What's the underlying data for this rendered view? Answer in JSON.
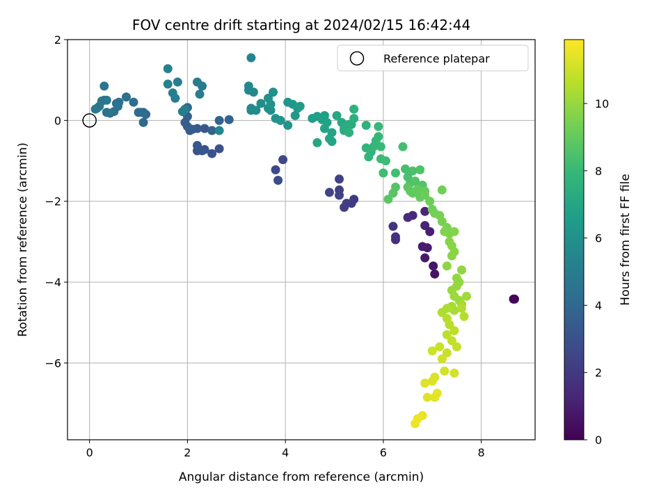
{
  "chart_data": {
    "type": "scatter",
    "title": "FOV centre drift starting at 2024/02/15 16:42:44",
    "xlabel": "Angular distance from reference (arcmin)",
    "ylabel": "Rotation from reference (arcmin)",
    "xlim": [
      -0.45,
      9.1
    ],
    "ylim": [
      -7.9,
      2.0
    ],
    "xticks": [
      0,
      2,
      4,
      6,
      8
    ],
    "yticks": [
      2,
      0,
      -2,
      -4,
      -6
    ],
    "xtick_labels": [
      "0",
      "2",
      "4",
      "6",
      "8"
    ],
    "ytick_labels": [
      "2",
      "0",
      "−2",
      "−4",
      "−6"
    ],
    "grid": true,
    "legend": {
      "position": "top-right",
      "entries": [
        "Reference platepar"
      ]
    },
    "reference_point": {
      "x": 0,
      "y": 0,
      "label": "Reference platepar"
    },
    "colorbar": {
      "label": "Hours from first FF file",
      "colormap": "viridis",
      "range": [
        0,
        11.9
      ],
      "ticks": [
        0,
        2,
        4,
        6,
        8,
        10
      ],
      "tick_labels": [
        "0",
        "2",
        "4",
        "6",
        "8",
        "10"
      ],
      "stops": [
        "#440154",
        "#482878",
        "#3e4989",
        "#31688e",
        "#26828e",
        "#1f9e89",
        "#35b779",
        "#6ece58",
        "#b5de2b",
        "#fde725"
      ]
    },
    "points": [
      [
        8.68,
        -4.42,
        0.05
      ],
      [
        8.66,
        -4.42,
        0.1
      ],
      [
        7.05,
        -3.8,
        0.6
      ],
      [
        7.02,
        -3.6,
        0.7
      ],
      [
        6.85,
        -3.4,
        0.8
      ],
      [
        6.9,
        -3.15,
        0.9
      ],
      [
        6.8,
        -3.12,
        1.0
      ],
      [
        6.95,
        -2.75,
        1.1
      ],
      [
        6.85,
        -2.6,
        1.2
      ],
      [
        6.85,
        -2.25,
        1.3
      ],
      [
        6.6,
        -2.35,
        1.4
      ],
      [
        6.5,
        -2.4,
        1.5
      ],
      [
        6.25,
        -2.95,
        1.6
      ],
      [
        6.25,
        -2.88,
        1.7
      ],
      [
        6.2,
        -2.62,
        1.8
      ],
      [
        5.4,
        -1.95,
        2.0
      ],
      [
        5.35,
        -2.05,
        2.1
      ],
      [
        5.25,
        -2.05,
        2.15
      ],
      [
        5.2,
        -2.15,
        2.2
      ],
      [
        5.1,
        -1.72,
        2.3
      ],
      [
        5.1,
        -1.45,
        2.35
      ],
      [
        5.1,
        -1.85,
        2.4
      ],
      [
        4.9,
        -1.78,
        2.5
      ],
      [
        3.95,
        -0.97,
        2.6
      ],
      [
        3.8,
        -1.22,
        2.7
      ],
      [
        3.85,
        -1.48,
        2.8
      ],
      [
        2.65,
        -0.7,
        3.0
      ],
      [
        2.5,
        -0.82,
        3.05
      ],
      [
        2.35,
        -0.72,
        3.1
      ],
      [
        2.3,
        -0.75,
        3.15
      ],
      [
        2.2,
        -0.75,
        3.2
      ],
      [
        2.2,
        -0.62,
        3.25
      ],
      [
        2.35,
        -0.2,
        3.3
      ],
      [
        2.2,
        -0.2,
        3.35
      ],
      [
        2.1,
        -0.22,
        3.4
      ],
      [
        2.05,
        -0.25,
        3.45
      ],
      [
        2.0,
        -0.15,
        3.5
      ],
      [
        1.95,
        -0.05,
        3.55
      ],
      [
        2.0,
        0.1,
        3.6
      ],
      [
        2.5,
        -0.25,
        3.7
      ],
      [
        2.65,
        0.0,
        3.75
      ],
      [
        2.85,
        0.02,
        3.8
      ],
      [
        1.95,
        0.25,
        3.85
      ],
      [
        2.0,
        0.32,
        3.9
      ],
      [
        1.1,
        -0.05,
        4.0
      ],
      [
        1.15,
        0.15,
        4.05
      ],
      [
        1.1,
        0.2,
        4.1
      ],
      [
        1.05,
        0.2,
        4.15
      ],
      [
        1.0,
        0.2,
        4.2
      ],
      [
        0.9,
        0.45,
        4.25
      ],
      [
        0.75,
        0.58,
        4.3
      ],
      [
        0.6,
        0.45,
        4.35
      ],
      [
        0.55,
        0.42,
        4.4
      ],
      [
        0.58,
        0.35,
        4.45
      ],
      [
        0.5,
        0.22,
        4.5
      ],
      [
        0.42,
        0.18,
        4.55
      ],
      [
        0.35,
        0.2,
        4.6
      ],
      [
        0.3,
        0.85,
        4.62
      ],
      [
        0.3,
        0.5,
        4.65
      ],
      [
        0.25,
        0.48,
        4.7
      ],
      [
        0.2,
        0.35,
        4.75
      ],
      [
        0.15,
        0.3,
        4.8
      ],
      [
        0.12,
        0.28,
        4.82
      ],
      [
        0.35,
        0.5,
        4.85
      ],
      [
        2.3,
        0.85,
        4.9
      ],
      [
        2.2,
        0.95,
        4.92
      ],
      [
        2.25,
        0.65,
        4.95
      ],
      [
        1.95,
        0.28,
        5.0
      ],
      [
        1.9,
        0.22,
        5.05
      ],
      [
        1.75,
        0.55,
        5.1
      ],
      [
        1.7,
        0.68,
        5.15
      ],
      [
        1.8,
        0.95,
        5.2
      ],
      [
        1.6,
        0.9,
        5.25
      ],
      [
        1.6,
        1.28,
        5.3
      ],
      [
        2.65,
        -0.25,
        5.4
      ],
      [
        3.3,
        1.55,
        5.5
      ],
      [
        3.25,
        0.85,
        5.55
      ],
      [
        3.25,
        0.75,
        5.6
      ],
      [
        3.35,
        0.7,
        5.62
      ],
      [
        3.3,
        0.3,
        5.65
      ],
      [
        3.3,
        0.25,
        5.7
      ],
      [
        3.4,
        0.25,
        5.75
      ],
      [
        3.5,
        0.42,
        5.8
      ],
      [
        3.65,
        0.3,
        5.85
      ],
      [
        3.7,
        0.25,
        5.9
      ],
      [
        3.65,
        0.55,
        5.95
      ],
      [
        3.75,
        0.7,
        6.0
      ],
      [
        3.7,
        0.4,
        6.05
      ],
      [
        3.8,
        0.05,
        6.1
      ],
      [
        3.9,
        0.0,
        6.15
      ],
      [
        4.05,
        -0.12,
        6.2
      ],
      [
        4.05,
        0.45,
        6.25
      ],
      [
        4.15,
        0.4,
        6.3
      ],
      [
        4.2,
        0.12,
        6.35
      ],
      [
        4.25,
        0.3,
        6.4
      ],
      [
        4.3,
        0.35,
        6.45
      ],
      [
        4.55,
        0.05,
        6.6
      ],
      [
        4.65,
        0.1,
        6.65
      ],
      [
        4.8,
        0.12,
        6.7
      ],
      [
        4.75,
        0.02,
        6.75
      ],
      [
        4.85,
        -0.05,
        6.8
      ],
      [
        4.8,
        -0.2,
        6.85
      ],
      [
        4.95,
        -0.3,
        6.9
      ],
      [
        4.9,
        -0.45,
        6.95
      ],
      [
        4.95,
        -0.52,
        7.0
      ],
      [
        4.65,
        -0.55,
        7.05
      ],
      [
        5.05,
        0.12,
        7.1
      ],
      [
        5.15,
        -0.05,
        7.15
      ],
      [
        5.2,
        -0.25,
        7.2
      ],
      [
        5.2,
        -0.2,
        7.25
      ],
      [
        5.25,
        -0.15,
        7.3
      ],
      [
        5.3,
        -0.1,
        7.35
      ],
      [
        5.35,
        -0.1,
        7.4
      ],
      [
        5.4,
        0.05,
        7.45
      ],
      [
        5.3,
        -0.3,
        7.5
      ],
      [
        5.4,
        0.28,
        7.55
      ],
      [
        5.65,
        -0.12,
        7.6
      ],
      [
        5.65,
        -0.68,
        7.7
      ],
      [
        5.75,
        -0.78,
        7.75
      ],
      [
        5.7,
        -0.9,
        7.8
      ],
      [
        5.8,
        -0.65,
        7.85
      ],
      [
        5.85,
        -0.5,
        7.9
      ],
      [
        5.9,
        -0.4,
        7.95
      ],
      [
        5.9,
        -0.15,
        8.0
      ],
      [
        5.95,
        -0.65,
        8.05
      ],
      [
        5.95,
        -0.95,
        8.1
      ],
      [
        6.05,
        -1.0,
        8.15
      ],
      [
        6.0,
        -1.3,
        8.2
      ],
      [
        6.25,
        -1.3,
        8.25
      ],
      [
        6.4,
        -0.65,
        8.3
      ],
      [
        6.45,
        -1.2,
        8.35
      ],
      [
        6.5,
        -1.4,
        8.4
      ],
      [
        6.6,
        -1.25,
        8.45
      ],
      [
        6.55,
        -1.55,
        8.5
      ],
      [
        6.75,
        -1.22,
        8.55
      ],
      [
        6.65,
        -1.5,
        8.6
      ],
      [
        6.8,
        -1.6,
        8.65
      ],
      [
        6.25,
        -1.65,
        8.7
      ],
      [
        6.2,
        -1.8,
        8.75
      ],
      [
        6.1,
        -1.95,
        8.8
      ],
      [
        6.5,
        -1.65,
        8.85
      ],
      [
        6.55,
        -1.75,
        8.9
      ],
      [
        6.6,
        -1.8,
        8.95
      ],
      [
        6.7,
        -1.7,
        9.0
      ],
      [
        6.75,
        -1.9,
        9.05
      ],
      [
        6.85,
        -1.75,
        9.1
      ],
      [
        6.85,
        -1.85,
        9.15
      ],
      [
        6.95,
        -2.0,
        9.2
      ],
      [
        7.0,
        -2.2,
        9.25
      ],
      [
        7.2,
        -1.72,
        9.3
      ],
      [
        7.05,
        -2.3,
        9.35
      ],
      [
        7.15,
        -2.35,
        9.4
      ],
      [
        7.2,
        -2.5,
        9.45
      ],
      [
        7.3,
        -2.65,
        9.5
      ],
      [
        7.25,
        -2.75,
        9.55
      ],
      [
        7.35,
        -2.8,
        9.6
      ],
      [
        7.45,
        -2.75,
        9.65
      ],
      [
        7.35,
        -3.0,
        9.7
      ],
      [
        7.4,
        -3.1,
        9.72
      ],
      [
        7.45,
        -3.25,
        9.75
      ],
      [
        7.4,
        -3.35,
        9.8
      ],
      [
        7.3,
        -3.6,
        9.85
      ],
      [
        7.6,
        -3.7,
        9.9
      ],
      [
        7.5,
        -3.9,
        9.92
      ],
      [
        7.55,
        -4.0,
        9.95
      ],
      [
        7.5,
        -4.1,
        10.0
      ],
      [
        7.4,
        -4.2,
        10.05
      ],
      [
        7.45,
        -4.35,
        10.1
      ],
      [
        7.55,
        -4.45,
        10.15
      ],
      [
        7.7,
        -4.35,
        10.2
      ],
      [
        7.6,
        -4.55,
        10.25
      ],
      [
        7.4,
        -4.6,
        10.3
      ],
      [
        7.45,
        -4.7,
        10.35
      ],
      [
        7.3,
        -4.65,
        10.4
      ],
      [
        7.2,
        -4.75,
        10.45
      ],
      [
        7.6,
        -4.65,
        10.5
      ],
      [
        7.65,
        -4.85,
        10.55
      ],
      [
        7.3,
        -4.9,
        10.6
      ],
      [
        7.35,
        -5.05,
        10.65
      ],
      [
        7.45,
        -5.2,
        10.7
      ],
      [
        7.3,
        -5.3,
        10.75
      ],
      [
        7.4,
        -5.45,
        10.8
      ],
      [
        7.5,
        -5.6,
        10.85
      ],
      [
        7.3,
        -5.75,
        10.9
      ],
      [
        7.15,
        -5.6,
        10.95
      ],
      [
        7.0,
        -5.7,
        11.0
      ],
      [
        7.2,
        -5.9,
        11.05
      ],
      [
        7.45,
        -6.25,
        11.1
      ],
      [
        7.25,
        -6.2,
        11.15
      ],
      [
        7.05,
        -6.35,
        11.2
      ],
      [
        7.0,
        -6.45,
        11.25
      ],
      [
        6.85,
        -6.5,
        11.3
      ],
      [
        6.9,
        -6.85,
        11.35
      ],
      [
        7.05,
        -6.85,
        11.4
      ],
      [
        7.1,
        -6.75,
        11.45
      ],
      [
        6.8,
        -7.3,
        11.5
      ],
      [
        6.7,
        -7.38,
        11.55
      ],
      [
        6.65,
        -7.5,
        11.6
      ]
    ]
  }
}
